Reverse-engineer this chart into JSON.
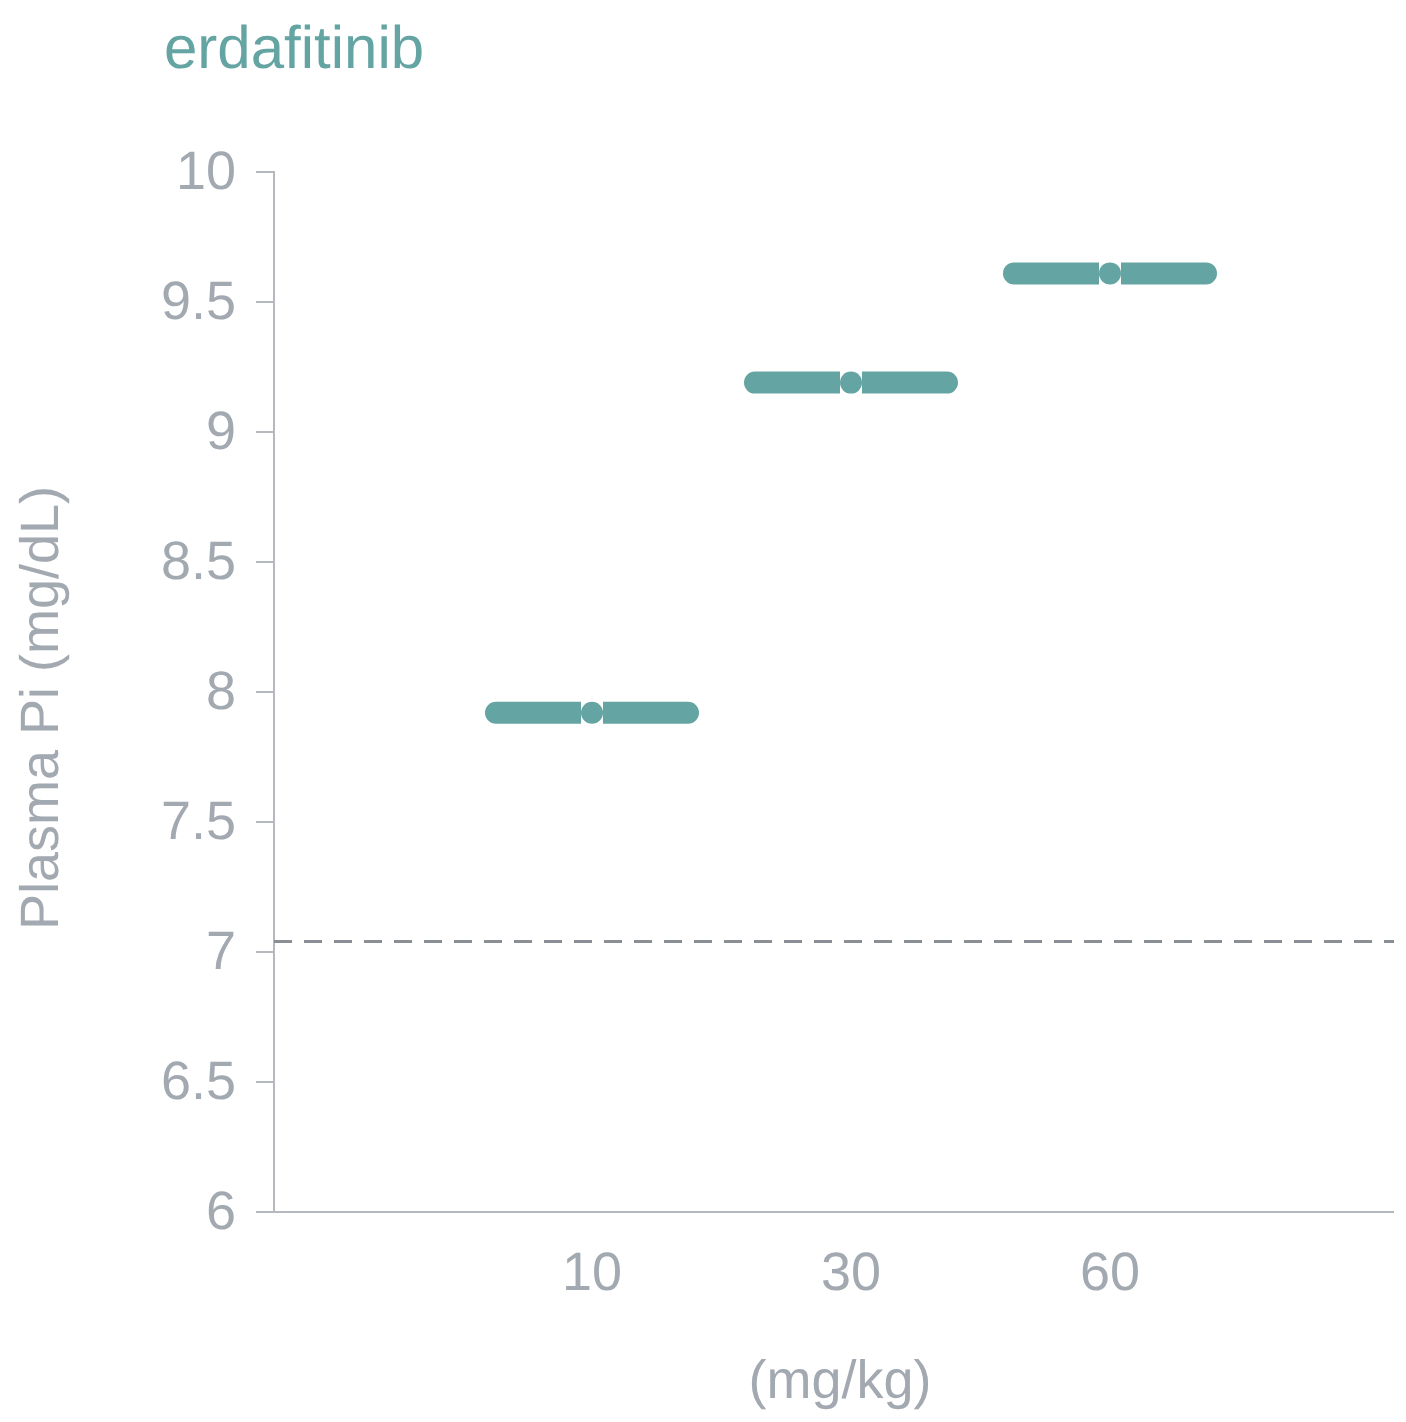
{
  "chart_data": {
    "type": "scatter",
    "title": "erdafitinib",
    "xlabel": "(mg/kg)",
    "ylabel": "Plasma Pi (mg/dL)",
    "categories": [
      "10",
      "30",
      "60"
    ],
    "series": [
      {
        "color": "#64a5a3",
        "values": [
          7.92,
          9.19,
          9.61
        ]
      }
    ],
    "ylim": [
      6,
      10
    ],
    "yticks": [
      6,
      {
        "value": 6.5,
        "label": "6.5"
      },
      7,
      {
        "value": 7.5,
        "label": "7.5"
      },
      8,
      {
        "value": 8.5,
        "label": "8.5"
      },
      9,
      {
        "value": 9.5,
        "label": "9.5"
      },
      10
    ],
    "ref_lines": [
      {
        "axis": "y",
        "value": 7.04,
        "color": "#8a8f96",
        "line_style": "dashed"
      }
    ],
    "grid": false
  }
}
